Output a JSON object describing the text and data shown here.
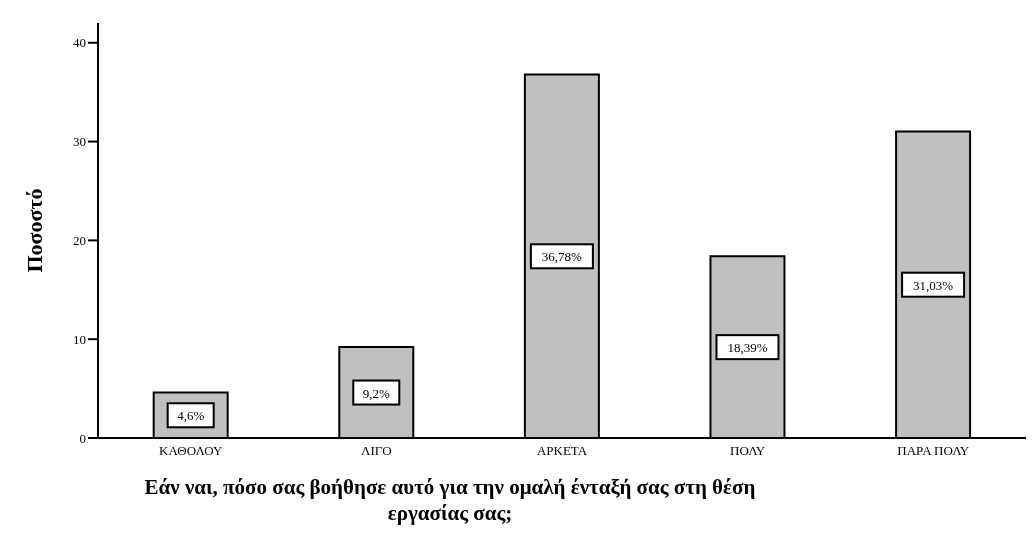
{
  "chart_data": {
    "type": "bar",
    "xlabel": "Εάν ναι, πόσο σας βοήθησε αυτό για την ομαλή ένταξή σας στη θέση εργασίας σας;",
    "ylabel": "Ποσοστό",
    "categories": [
      "ΚΑΘΟΛΟΥ",
      "ΛΙΓΟ",
      "ΑΡΚΕΤΑ",
      "ΠΟΛΥ",
      "ΠΑΡΑ ΠΟΛΥ"
    ],
    "values": [
      4.6,
      9.2,
      36.78,
      18.39,
      31.03
    ],
    "value_labels": [
      "4,6%",
      "9,2%",
      "36,78%",
      "18,39%",
      "31,03%"
    ],
    "color": "#c0c0c0",
    "ylim": [
      0,
      42
    ],
    "yticks": [
      0,
      10,
      20,
      30,
      40
    ],
    "grid": false,
    "legend": false
  }
}
